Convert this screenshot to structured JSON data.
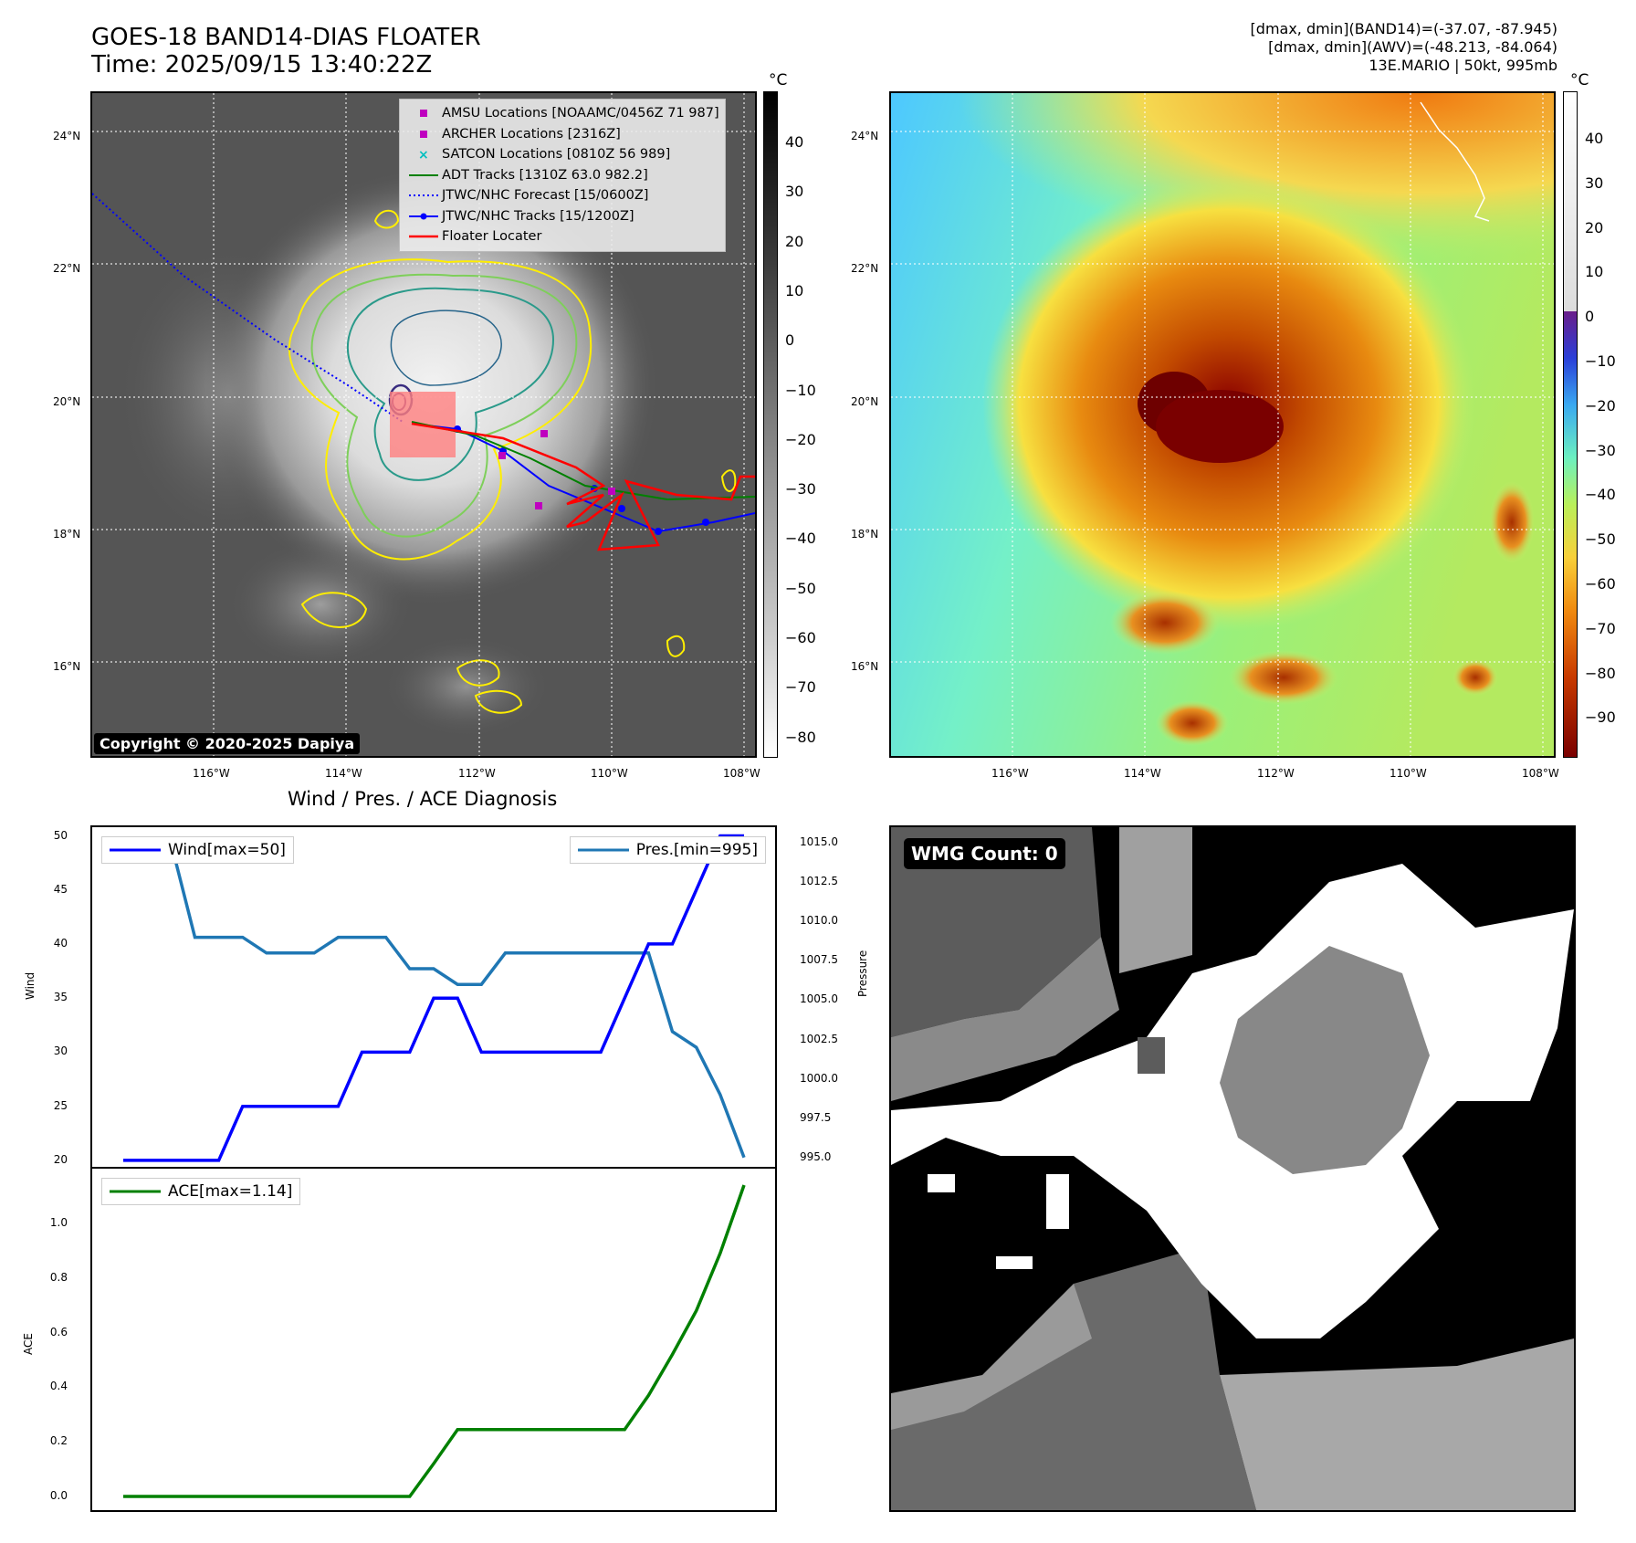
{
  "header": {
    "title_line1": "GOES-18 BAND14-DIAS FLOATER",
    "title_line2": "Time: 2025/09/15 13:40:22Z",
    "meta_line1": "[dmax, dmin](BAND14)=(-37.07, -87.945)",
    "meta_line2": "[dmax, dmin](AWV)=(-48.213, -84.064)",
    "meta_line3": "13E.MARIO | 50kt, 995mb"
  },
  "map": {
    "lat_labels": [
      "24°N",
      "22°N",
      "20°N",
      "18°N",
      "16°N"
    ],
    "lon_labels": [
      "116°W",
      "114°W",
      "112°W",
      "110°W",
      "108°W"
    ],
    "copyright": "Copyright © 2020-2025 Dapiya",
    "legend": [
      {
        "label": "AMSU Locations [NOAAMC/0456Z 71 987]",
        "symbol": "square",
        "color": "#bf00bf"
      },
      {
        "label": "ARCHER Locations [2316Z]",
        "symbol": "square",
        "color": "#bf00bf"
      },
      {
        "label": "SATCON Locations [0810Z 56 989]",
        "symbol": "x",
        "color": "#00bfbf"
      },
      {
        "label": "ADT Tracks [1310Z 63.0 982.2]",
        "symbol": "line",
        "color": "#008000"
      },
      {
        "label": "JTWC/NHC Forecast [15/0600Z]",
        "symbol": "dotted",
        "color": "#0000ff"
      },
      {
        "label": "JTWC/NHC Tracks [15/1200Z]",
        "symbol": "line-dot",
        "color": "#0000ff"
      },
      {
        "label": "Floater Locater",
        "symbol": "line",
        "color": "#ff0000"
      }
    ]
  },
  "colorbar_ir": {
    "unit": "°C",
    "ticks": [
      "40",
      "30",
      "20",
      "10",
      "0",
      "−10",
      "−20",
      "−30",
      "−40",
      "−50",
      "−60",
      "−70",
      "−80"
    ]
  },
  "colorbar_awv": {
    "unit": "°C",
    "ticks": [
      "40",
      "30",
      "20",
      "10",
      "0",
      "−10",
      "−20",
      "−30",
      "−40",
      "−50",
      "−60",
      "−70",
      "−80",
      "−90"
    ]
  },
  "wmg": {
    "label": "WMG Count: 0"
  },
  "diagnosis": {
    "title": "Wind / Pres. / ACE Diagnosis",
    "wind_ylabel": "Wind",
    "pres_ylabel": "Pressure",
    "ace_ylabel": "ACE",
    "wind_legend": "Wind[max=50]",
    "pres_legend": "Pres.[min=995]",
    "ace_legend": "ACE[max=1.14]",
    "wind_ticks": [
      "50",
      "45",
      "40",
      "35",
      "30",
      "25",
      "20"
    ],
    "pres_ticks": [
      "1015.0",
      "1012.5",
      "1010.0",
      "1007.5",
      "1005.0",
      "1002.5",
      "1000.0",
      "997.5",
      "995.0"
    ],
    "ace_ticks": [
      "1.0",
      "0.8",
      "0.6",
      "0.4",
      "0.2",
      "0.0"
    ]
  },
  "chart_data": [
    {
      "type": "line",
      "name": "Wind / Pres. diagnosis",
      "x": [
        0,
        1,
        2,
        3,
        4,
        5,
        6,
        7,
        8,
        9,
        10,
        11,
        12,
        13,
        14,
        15,
        16,
        17,
        18,
        19,
        20,
        21,
        22,
        23,
        24,
        25,
        26
      ],
      "series": [
        {
          "name": "Wind[max=50]",
          "color": "#0000ff",
          "axis": "left",
          "values": [
            20,
            20,
            20,
            20,
            20,
            25,
            25,
            25,
            25,
            25,
            30,
            30,
            30,
            35,
            35,
            30,
            30,
            30,
            30,
            30,
            30,
            35,
            40,
            40,
            45,
            50,
            50
          ]
        },
        {
          "name": "Pres.[min=995]",
          "color": "#1f77b4",
          "axis": "right",
          "values": [
            1015,
            1015,
            1015,
            1009,
            1009,
            1009,
            1008,
            1008,
            1008,
            1009,
            1009,
            1009,
            1007,
            1007,
            1006,
            1006,
            1008,
            1008,
            1008,
            1008,
            1008,
            1008,
            1008,
            1003,
            1002,
            999,
            995
          ]
        }
      ],
      "ylim_left": [
        19.4,
        50.8
      ],
      "ylim_right": [
        994.4,
        1016.0
      ]
    },
    {
      "type": "line",
      "name": "ACE diagnosis",
      "x": [
        0,
        1,
        2,
        3,
        4,
        5,
        6,
        7,
        8,
        9,
        10,
        11,
        12,
        13,
        14,
        15,
        16,
        17,
        18,
        19,
        20,
        21,
        22,
        23,
        24,
        25,
        26
      ],
      "series": [
        {
          "name": "ACE[max=1.14]",
          "color": "#008000",
          "values": [
            0,
            0,
            0,
            0,
            0,
            0,
            0,
            0,
            0,
            0,
            0,
            0,
            0,
            0.12,
            0.245,
            0.245,
            0.245,
            0.245,
            0.245,
            0.245,
            0.245,
            0.245,
            0.37,
            0.52,
            0.68,
            0.89,
            1.14
          ]
        }
      ],
      "ylim": [
        -0.05,
        1.2
      ]
    }
  ]
}
